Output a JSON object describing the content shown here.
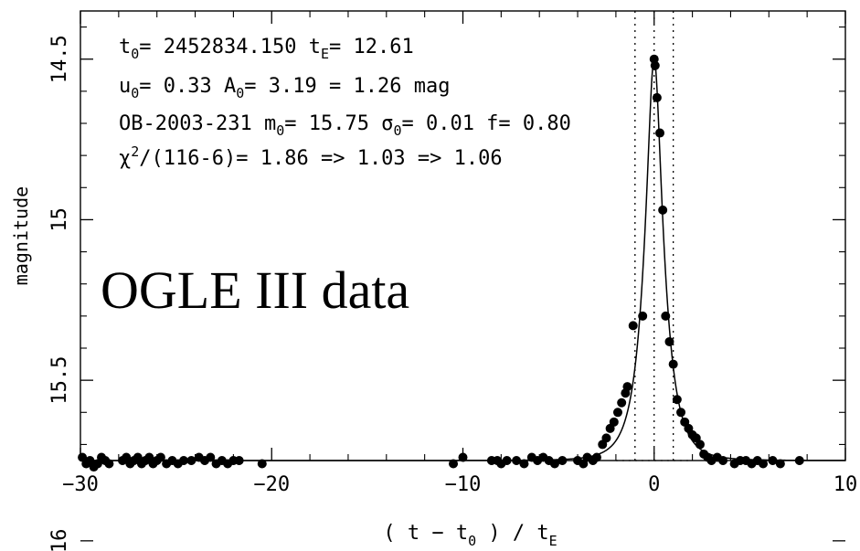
{
  "chart_data": {
    "type": "scatter",
    "title": "",
    "xlabel_parts": [
      "( t − t",
      "0",
      " ) / t",
      "E"
    ],
    "ylabel": "magnitude",
    "xlim": [
      -30,
      10
    ],
    "ylim": [
      15.75,
      14.35
    ],
    "y_inverted": true,
    "x_ticks": [
      -30,
      -20,
      -10,
      0,
      10
    ],
    "x_tick_labels": [
      "−30",
      "−20",
      "−10",
      "0",
      "10"
    ],
    "y_ticks": [
      14.5,
      15,
      15.5,
      16
    ],
    "y_tick_labels": [
      "14.5",
      "15",
      "15.5",
      "16"
    ],
    "grid": false,
    "baseline_mag": 15.75,
    "vertical_dotted_lines_x": [
      -1,
      0,
      1
    ],
    "horizontal_dotted_line_y": 15.75,
    "horizontal_dotted_range": [
      -2,
      2
    ],
    "fit_model": {
      "t0_units": 0,
      "u0": 0.33,
      "baseline": 15.75
    },
    "annotation_lines": [
      [
        {
          "t": "t",
          "s": "n"
        },
        {
          "t": "0",
          "s": "sub"
        },
        {
          "t": "= 2452834.150 t",
          "s": "n"
        },
        {
          "t": "E",
          "s": "sub"
        },
        {
          "t": "= 12.61",
          "s": "n"
        }
      ],
      [
        {
          "t": "u",
          "s": "n"
        },
        {
          "t": "0",
          "s": "sub"
        },
        {
          "t": "= 0.33 A",
          "s": "n"
        },
        {
          "t": "0",
          "s": "sub"
        },
        {
          "t": "= 3.19 = 1.26 mag",
          "s": "n"
        }
      ],
      [
        {
          "t": "OB-2003-231 m",
          "s": "n"
        },
        {
          "t": "0",
          "s": "sub"
        },
        {
          "t": "= 15.75 σ",
          "s": "n"
        },
        {
          "t": "0",
          "s": "sub"
        },
        {
          "t": "= 0.01 f= 0.80",
          "s": "n"
        }
      ],
      [
        {
          "t": "χ",
          "s": "n"
        },
        {
          "t": "2",
          "s": "sup"
        },
        {
          "t": "/(116-6)= 1.86 => 1.03 => 1.06",
          "s": "n"
        }
      ]
    ],
    "overlay_label": "OGLE III data",
    "points": [
      [
        -29.9,
        15.74
      ],
      [
        -29.7,
        15.76
      ],
      [
        -29.5,
        15.75
      ],
      [
        -29.3,
        15.77
      ],
      [
        -29.1,
        15.76
      ],
      [
        -28.9,
        15.74
      ],
      [
        -28.7,
        15.75
      ],
      [
        -28.5,
        15.76
      ],
      [
        -27.8,
        15.75
      ],
      [
        -27.6,
        15.74
      ],
      [
        -27.4,
        15.76
      ],
      [
        -27.2,
        15.75
      ],
      [
        -27.0,
        15.74
      ],
      [
        -26.8,
        15.76
      ],
      [
        -26.6,
        15.75
      ],
      [
        -26.4,
        15.74
      ],
      [
        -26.2,
        15.76
      ],
      [
        -26.0,
        15.75
      ],
      [
        -25.8,
        15.74
      ],
      [
        -25.5,
        15.76
      ],
      [
        -25.2,
        15.75
      ],
      [
        -24.9,
        15.76
      ],
      [
        -24.6,
        15.75
      ],
      [
        -24.2,
        15.75
      ],
      [
        -23.8,
        15.74
      ],
      [
        -23.5,
        15.75
      ],
      [
        -23.2,
        15.74
      ],
      [
        -22.9,
        15.76
      ],
      [
        -22.6,
        15.75
      ],
      [
        -22.3,
        15.76
      ],
      [
        -22.0,
        15.75
      ],
      [
        -21.7,
        15.75
      ],
      [
        -20.5,
        15.76
      ],
      [
        -10.5,
        15.76
      ],
      [
        -10.0,
        15.74
      ],
      [
        -8.5,
        15.75
      ],
      [
        -8.2,
        15.75
      ],
      [
        -8.0,
        15.76
      ],
      [
        -7.7,
        15.75
      ],
      [
        -7.2,
        15.75
      ],
      [
        -6.8,
        15.76
      ],
      [
        -6.4,
        15.74
      ],
      [
        -6.1,
        15.75
      ],
      [
        -5.8,
        15.74
      ],
      [
        -5.5,
        15.75
      ],
      [
        -5.2,
        15.76
      ],
      [
        -4.8,
        15.75
      ],
      [
        -4.0,
        15.75
      ],
      [
        -3.7,
        15.76
      ],
      [
        -3.5,
        15.74
      ],
      [
        -3.2,
        15.75
      ],
      [
        -3.0,
        15.74
      ],
      [
        -2.7,
        15.7
      ],
      [
        -2.5,
        15.68
      ],
      [
        -2.3,
        15.65
      ],
      [
        -2.1,
        15.63
      ],
      [
        -1.9,
        15.6
      ],
      [
        -1.7,
        15.57
      ],
      [
        -1.5,
        15.54
      ],
      [
        -1.4,
        15.52
      ],
      [
        -1.1,
        15.33
      ],
      [
        -0.6,
        15.3
      ],
      [
        0.0,
        14.5
      ],
      [
        0.05,
        14.52
      ],
      [
        0.15,
        14.62
      ],
      [
        0.3,
        14.73
      ],
      [
        0.45,
        14.97
      ],
      [
        0.6,
        15.3
      ],
      [
        0.8,
        15.38
      ],
      [
        1.0,
        15.45
      ],
      [
        1.2,
        15.56
      ],
      [
        1.4,
        15.6
      ],
      [
        1.6,
        15.63
      ],
      [
        1.8,
        15.65
      ],
      [
        2.0,
        15.67
      ],
      [
        2.2,
        15.68
      ],
      [
        2.4,
        15.7
      ],
      [
        2.6,
        15.73
      ],
      [
        2.8,
        15.74
      ],
      [
        3.0,
        15.75
      ],
      [
        3.3,
        15.74
      ],
      [
        3.6,
        15.75
      ],
      [
        4.2,
        15.76
      ],
      [
        4.5,
        15.75
      ],
      [
        4.8,
        15.75
      ],
      [
        5.1,
        15.76
      ],
      [
        5.4,
        15.75
      ],
      [
        5.7,
        15.76
      ],
      [
        6.2,
        15.75
      ],
      [
        6.6,
        15.76
      ],
      [
        7.6,
        15.75
      ]
    ]
  }
}
